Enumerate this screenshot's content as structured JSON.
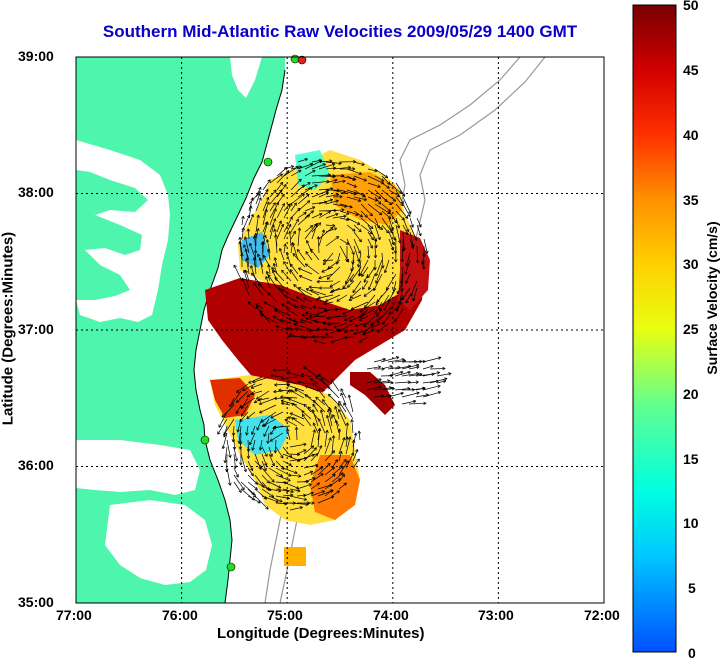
{
  "title": "Southern Mid-Atlantic Raw Velocities 2009/05/29 1400 GMT",
  "xlabel": "Longitude (Degrees:Minutes)",
  "ylabel": "Latitude (Degrees:Minutes)",
  "x_ticks": [
    "77:00",
    "76:00",
    "75:00",
    "74:00",
    "73:00",
    "72:00"
  ],
  "y_ticks": [
    "39:00",
    "38:00",
    "37:00",
    "36:00",
    "35:00"
  ],
  "colorbar": {
    "label": "Surface Velocity (cm/s)",
    "ticks": [
      "50",
      "45",
      "40",
      "35",
      "30",
      "25",
      "20",
      "15",
      "10",
      "5",
      "0"
    ],
    "min": 0,
    "max": 50
  },
  "colors": {
    "land": "#4ef5ac",
    "title": "#0a00c8",
    "grid": "#000000",
    "bathymetry": "#999999"
  }
}
